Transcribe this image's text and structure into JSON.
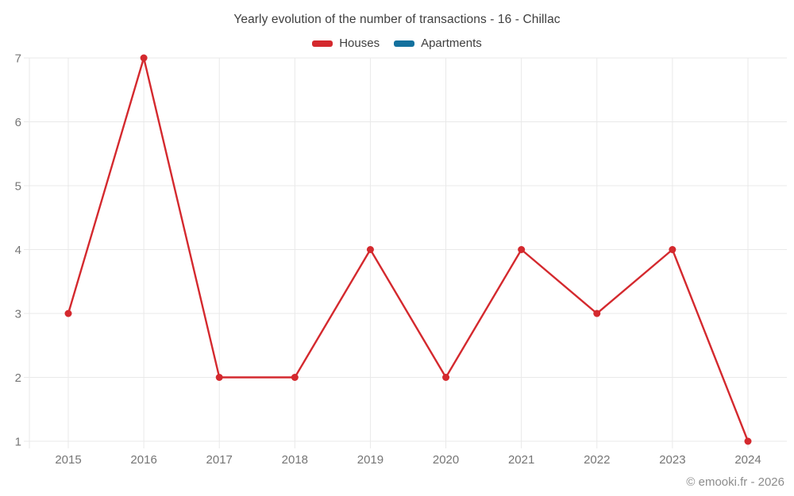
{
  "title": "Yearly evolution of the number of transactions - 16 - Chillac",
  "legend": {
    "items": [
      {
        "label": "Houses",
        "color": "#d4292e"
      },
      {
        "label": "Apartments",
        "color": "#14719e"
      }
    ]
  },
  "footer": {
    "credit": "© emooki.fr - 2026"
  },
  "colors": {
    "grid": "#e9e9e9",
    "axis_text": "#757575",
    "title_text": "#3e3e3e",
    "footer_text": "#8c8c8c",
    "houses_line": "#d4292e",
    "apartments_line": "#14719e",
    "background": "#ffffff"
  },
  "chart_data": {
    "type": "line",
    "x": [
      "2015",
      "2016",
      "2017",
      "2018",
      "2019",
      "2020",
      "2021",
      "2022",
      "2023",
      "2024"
    ],
    "series": [
      {
        "name": "Houses",
        "color": "#d4292e",
        "values": [
          3,
          7,
          2,
          2,
          4,
          2,
          4,
          3,
          4,
          1
        ]
      },
      {
        "name": "Apartments",
        "color": "#14719e",
        "values": []
      }
    ],
    "title": "Yearly evolution of the number of transactions - 16 - Chillac",
    "xlabel": "",
    "ylabel": "",
    "ylim": [
      1,
      7
    ],
    "yticks": [
      1,
      2,
      3,
      4,
      5,
      6,
      7
    ],
    "grid": true,
    "legend_position": "top"
  }
}
